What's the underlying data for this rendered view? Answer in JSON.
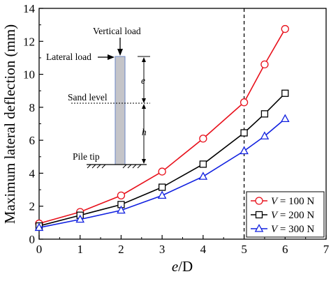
{
  "chart_data": {
    "type": "line",
    "title": "",
    "xlabel_var": "e",
    "xlabel_rest": "/D",
    "ylabel": "Maximum lateral deflection (mm)",
    "xlim": [
      0,
      7
    ],
    "ylim": [
      0,
      14
    ],
    "x_ticks": [
      "0",
      "1",
      "2",
      "3",
      "4",
      "5",
      "6",
      "7"
    ],
    "y_ticks": [
      "0",
      "2",
      "4",
      "6",
      "8",
      "10",
      "12",
      "14"
    ],
    "grid": false,
    "legend_position": "bottom-right",
    "reference_line": {
      "x": 5,
      "style": "dashed"
    },
    "x": [
      0,
      1,
      2,
      3,
      4,
      5,
      5.5,
      6
    ],
    "series": [
      {
        "var": "V",
        "label_rest": " = 100 N",
        "marker": "circle",
        "color": "#e8101b",
        "values": [
          0.95,
          1.65,
          2.65,
          4.1,
          6.1,
          8.3,
          10.6,
          12.75
        ]
      },
      {
        "var": "V",
        "label_rest": " = 200 N",
        "marker": "square",
        "color": "#000000",
        "values": [
          0.8,
          1.45,
          2.1,
          3.15,
          4.55,
          6.45,
          7.6,
          8.85
        ]
      },
      {
        "var": "V",
        "label_rest": " = 300 N",
        "marker": "triangle",
        "color": "#1020e0",
        "values": [
          0.7,
          1.2,
          1.75,
          2.65,
          3.8,
          5.35,
          6.25,
          7.3
        ]
      }
    ]
  },
  "inset": {
    "vertical_load": "Vertical load",
    "lateral_load": "Lateral load",
    "sand_level": "Sand level",
    "pile_tip": "Pile tip",
    "e_label": "e",
    "h_label": "h"
  }
}
